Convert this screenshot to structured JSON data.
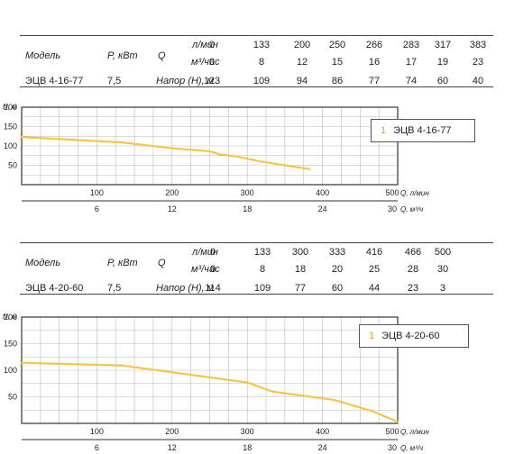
{
  "curve_color": "#f3c648",
  "line_color": "#333333",
  "grid_color": "#bbbbbb",
  "pumps": [
    {
      "header": {
        "model_label": "Модель",
        "power_label": "P, кВт",
        "q_label": "Q",
        "flow_lpm_label": "л/мин",
        "flow_m3h_label": "м³/час",
        "head_label": "Напор (Н), м"
      },
      "model": "ЭЦВ 4-16-77",
      "power": "7,5",
      "flow_lpm": [
        "0",
        "133",
        "200",
        "250",
        "266",
        "283",
        "317",
        "383"
      ],
      "flow_m3h": [
        "0",
        "8",
        "12",
        "15",
        "16",
        "17",
        "19",
        "23"
      ],
      "head": [
        "123",
        "109",
        "94",
        "86",
        "77",
        "74",
        "60",
        "40"
      ],
      "chart_data": {
        "type": "line",
        "ylabel": "H, м",
        "xlabel_top": "Q, л/мин",
        "xlabel_bottom": "Q, м³/ч",
        "xlim": [
          0,
          500
        ],
        "ylim": [
          0,
          200
        ],
        "y_ticks": [
          50,
          100,
          150,
          200
        ],
        "x_ticks_top": [
          100,
          200,
          300,
          400,
          500
        ],
        "x_ticks_bottom": [
          6,
          12,
          18,
          24,
          30
        ],
        "curve_marker": "1",
        "legend": {
          "number": "1",
          "label": "ЭЦВ 4-16-77",
          "position": "right"
        },
        "series": [
          {
            "name": "ЭЦВ 4-16-77",
            "x": [
              0,
              133,
              200,
              250,
              266,
              283,
              317,
              383
            ],
            "y": [
              123,
              109,
              94,
              86,
              77,
              74,
              60,
              40
            ]
          }
        ]
      }
    },
    {
      "header": {
        "model_label": "Модель",
        "power_label": "P, кВт",
        "q_label": "Q",
        "flow_lpm_label": "л/мин",
        "flow_m3h_label": "м³/час",
        "head_label": "Напор (Н), м"
      },
      "model": "ЭЦВ 4-20-60",
      "power": "7,5",
      "flow_lpm": [
        "0",
        "133",
        "300",
        "333",
        "416",
        "466",
        "500"
      ],
      "flow_m3h": [
        "0",
        "8",
        "18",
        "20",
        "25",
        "28",
        "30"
      ],
      "head": [
        "114",
        "109",
        "77",
        "60",
        "44",
        "23",
        "3"
      ],
      "chart_data": {
        "type": "line",
        "ylabel": "H, м",
        "xlabel_top": "Q, л/мин",
        "xlabel_bottom": "Q, м³/ч",
        "xlim": [
          0,
          500
        ],
        "ylim": [
          0,
          200
        ],
        "y_ticks": [
          50,
          100,
          150,
          200
        ],
        "x_ticks_top": [
          100,
          200,
          300,
          400,
          500
        ],
        "x_ticks_bottom": [
          6,
          12,
          18,
          24,
          30
        ],
        "curve_marker": "1",
        "legend": {
          "number": "1",
          "label": "ЭЦВ 4-20-60",
          "position": "right"
        },
        "series": [
          {
            "name": "ЭЦВ 4-20-60",
            "x": [
              0,
              133,
              300,
              333,
              416,
              466,
              500
            ],
            "y": [
              114,
              109,
              77,
              60,
              44,
              23,
              3
            ]
          }
        ]
      }
    }
  ]
}
